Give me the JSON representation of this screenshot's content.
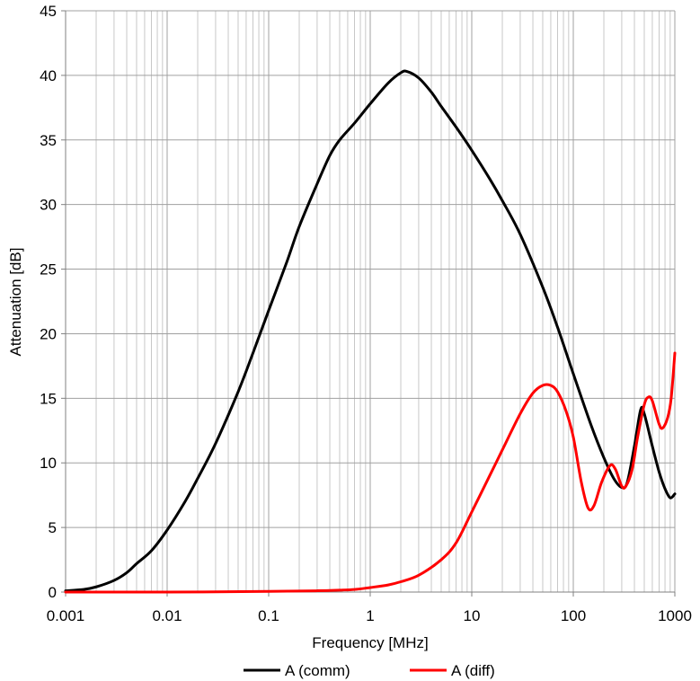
{
  "chart_data": {
    "type": "line",
    "xlabel": "Frequency [MHz]",
    "ylabel": "Attenuation [dB]",
    "x_scale": "log",
    "xlim": [
      0.001,
      1000
    ],
    "ylim": [
      0,
      45
    ],
    "x_ticks": [
      "0.001",
      "0.01",
      "0.1",
      "1",
      "10",
      "100",
      "1000"
    ],
    "y_ticks": [
      "0",
      "5",
      "10",
      "15",
      "20",
      "25",
      "30",
      "35",
      "40",
      "45"
    ],
    "grid": true,
    "legend_position": "bottom",
    "series": [
      {
        "name": "A (comm)",
        "color": "#000000",
        "points": [
          [
            0.001,
            0.1
          ],
          [
            0.0015,
            0.2
          ],
          [
            0.002,
            0.4
          ],
          [
            0.003,
            0.9
          ],
          [
            0.004,
            1.5
          ],
          [
            0.005,
            2.2
          ],
          [
            0.007,
            3.2
          ],
          [
            0.01,
            4.8
          ],
          [
            0.015,
            7.0
          ],
          [
            0.02,
            8.8
          ],
          [
            0.03,
            11.5
          ],
          [
            0.05,
            15.5
          ],
          [
            0.07,
            18.5
          ],
          [
            0.1,
            21.8
          ],
          [
            0.15,
            25.5
          ],
          [
            0.2,
            28.3
          ],
          [
            0.3,
            31.6
          ],
          [
            0.4,
            33.8
          ],
          [
            0.5,
            35.0
          ],
          [
            0.7,
            36.3
          ],
          [
            1,
            37.8
          ],
          [
            1.5,
            39.4
          ],
          [
            2,
            40.2
          ],
          [
            2.3,
            40.3
          ],
          [
            3,
            39.8
          ],
          [
            4,
            38.7
          ],
          [
            5,
            37.6
          ],
          [
            7,
            36.0
          ],
          [
            10,
            34.2
          ],
          [
            15,
            32.0
          ],
          [
            20,
            30.3
          ],
          [
            30,
            27.7
          ],
          [
            50,
            23.6
          ],
          [
            70,
            20.5
          ],
          [
            100,
            16.9
          ],
          [
            150,
            12.9
          ],
          [
            200,
            10.4
          ],
          [
            250,
            8.8
          ],
          [
            300,
            8.1
          ],
          [
            340,
            8.5
          ],
          [
            400,
            11.3
          ],
          [
            460,
            14.1
          ],
          [
            500,
            13.8
          ],
          [
            600,
            11.3
          ],
          [
            700,
            9.3
          ],
          [
            800,
            8.0
          ],
          [
            900,
            7.3
          ],
          [
            1000,
            7.6
          ]
        ]
      },
      {
        "name": "A (diff)",
        "color": "#ff0000",
        "points": [
          [
            0.001,
            0.0
          ],
          [
            0.01,
            0.0
          ],
          [
            0.1,
            0.05
          ],
          [
            0.3,
            0.1
          ],
          [
            0.5,
            0.15
          ],
          [
            0.7,
            0.2
          ],
          [
            1,
            0.35
          ],
          [
            1.5,
            0.55
          ],
          [
            2,
            0.8
          ],
          [
            3,
            1.3
          ],
          [
            5,
            2.5
          ],
          [
            7,
            3.8
          ],
          [
            10,
            6.2
          ],
          [
            15,
            9.0
          ],
          [
            20,
            11.0
          ],
          [
            30,
            13.8
          ],
          [
            40,
            15.4
          ],
          [
            50,
            16.0
          ],
          [
            60,
            16.0
          ],
          [
            70,
            15.5
          ],
          [
            85,
            14.0
          ],
          [
            100,
            12.0
          ],
          [
            120,
            8.5
          ],
          [
            140,
            6.5
          ],
          [
            160,
            6.7
          ],
          [
            190,
            8.5
          ],
          [
            230,
            9.8
          ],
          [
            260,
            9.5
          ],
          [
            300,
            8.2
          ],
          [
            330,
            8.2
          ],
          [
            380,
            9.5
          ],
          [
            430,
            12.0
          ],
          [
            500,
            14.5
          ],
          [
            550,
            15.1
          ],
          [
            600,
            14.8
          ],
          [
            700,
            13.0
          ],
          [
            760,
            12.7
          ],
          [
            850,
            13.5
          ],
          [
            920,
            15.0
          ],
          [
            1000,
            18.5
          ]
        ]
      }
    ]
  }
}
